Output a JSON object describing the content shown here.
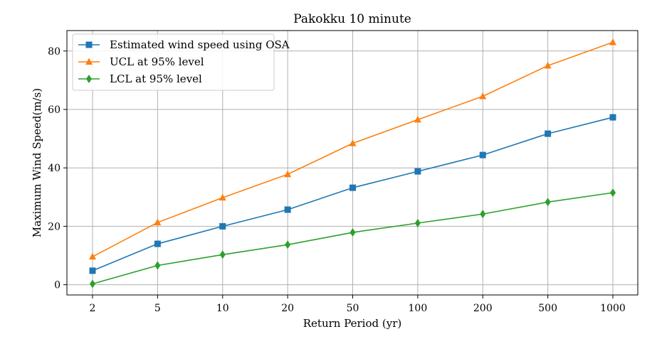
{
  "chart_data": {
    "type": "line",
    "title": "Pakokku 10 minute",
    "xlabel": "Return Period (yr)",
    "ylabel": "Maximum Wind Speed(m/s)",
    "categories": [
      "2",
      "5",
      "10",
      "20",
      "50",
      "100",
      "200",
      "500",
      "1000"
    ],
    "ylim": [
      -3.5,
      87
    ],
    "yticks": [
      0,
      20,
      40,
      60,
      80
    ],
    "grid": true,
    "legend_position": "top-left",
    "series": [
      {
        "name": "Estimated wind speed using OSA",
        "color": "#1f77b4",
        "marker": "square",
        "values": [
          4.8,
          14.0,
          20.0,
          25.7,
          33.2,
          38.8,
          44.4,
          51.7,
          57.3
        ]
      },
      {
        "name": "UCL at 95% level",
        "color": "#ff7f0e",
        "marker": "triangle",
        "values": [
          9.6,
          21.3,
          29.8,
          37.8,
          48.4,
          56.5,
          64.5,
          75.0,
          83.0
        ]
      },
      {
        "name": "LCL at 95% level",
        "color": "#2ca02c",
        "marker": "diamond",
        "values": [
          0.3,
          6.6,
          10.3,
          13.7,
          17.9,
          21.1,
          24.2,
          28.3,
          31.5
        ]
      }
    ]
  }
}
